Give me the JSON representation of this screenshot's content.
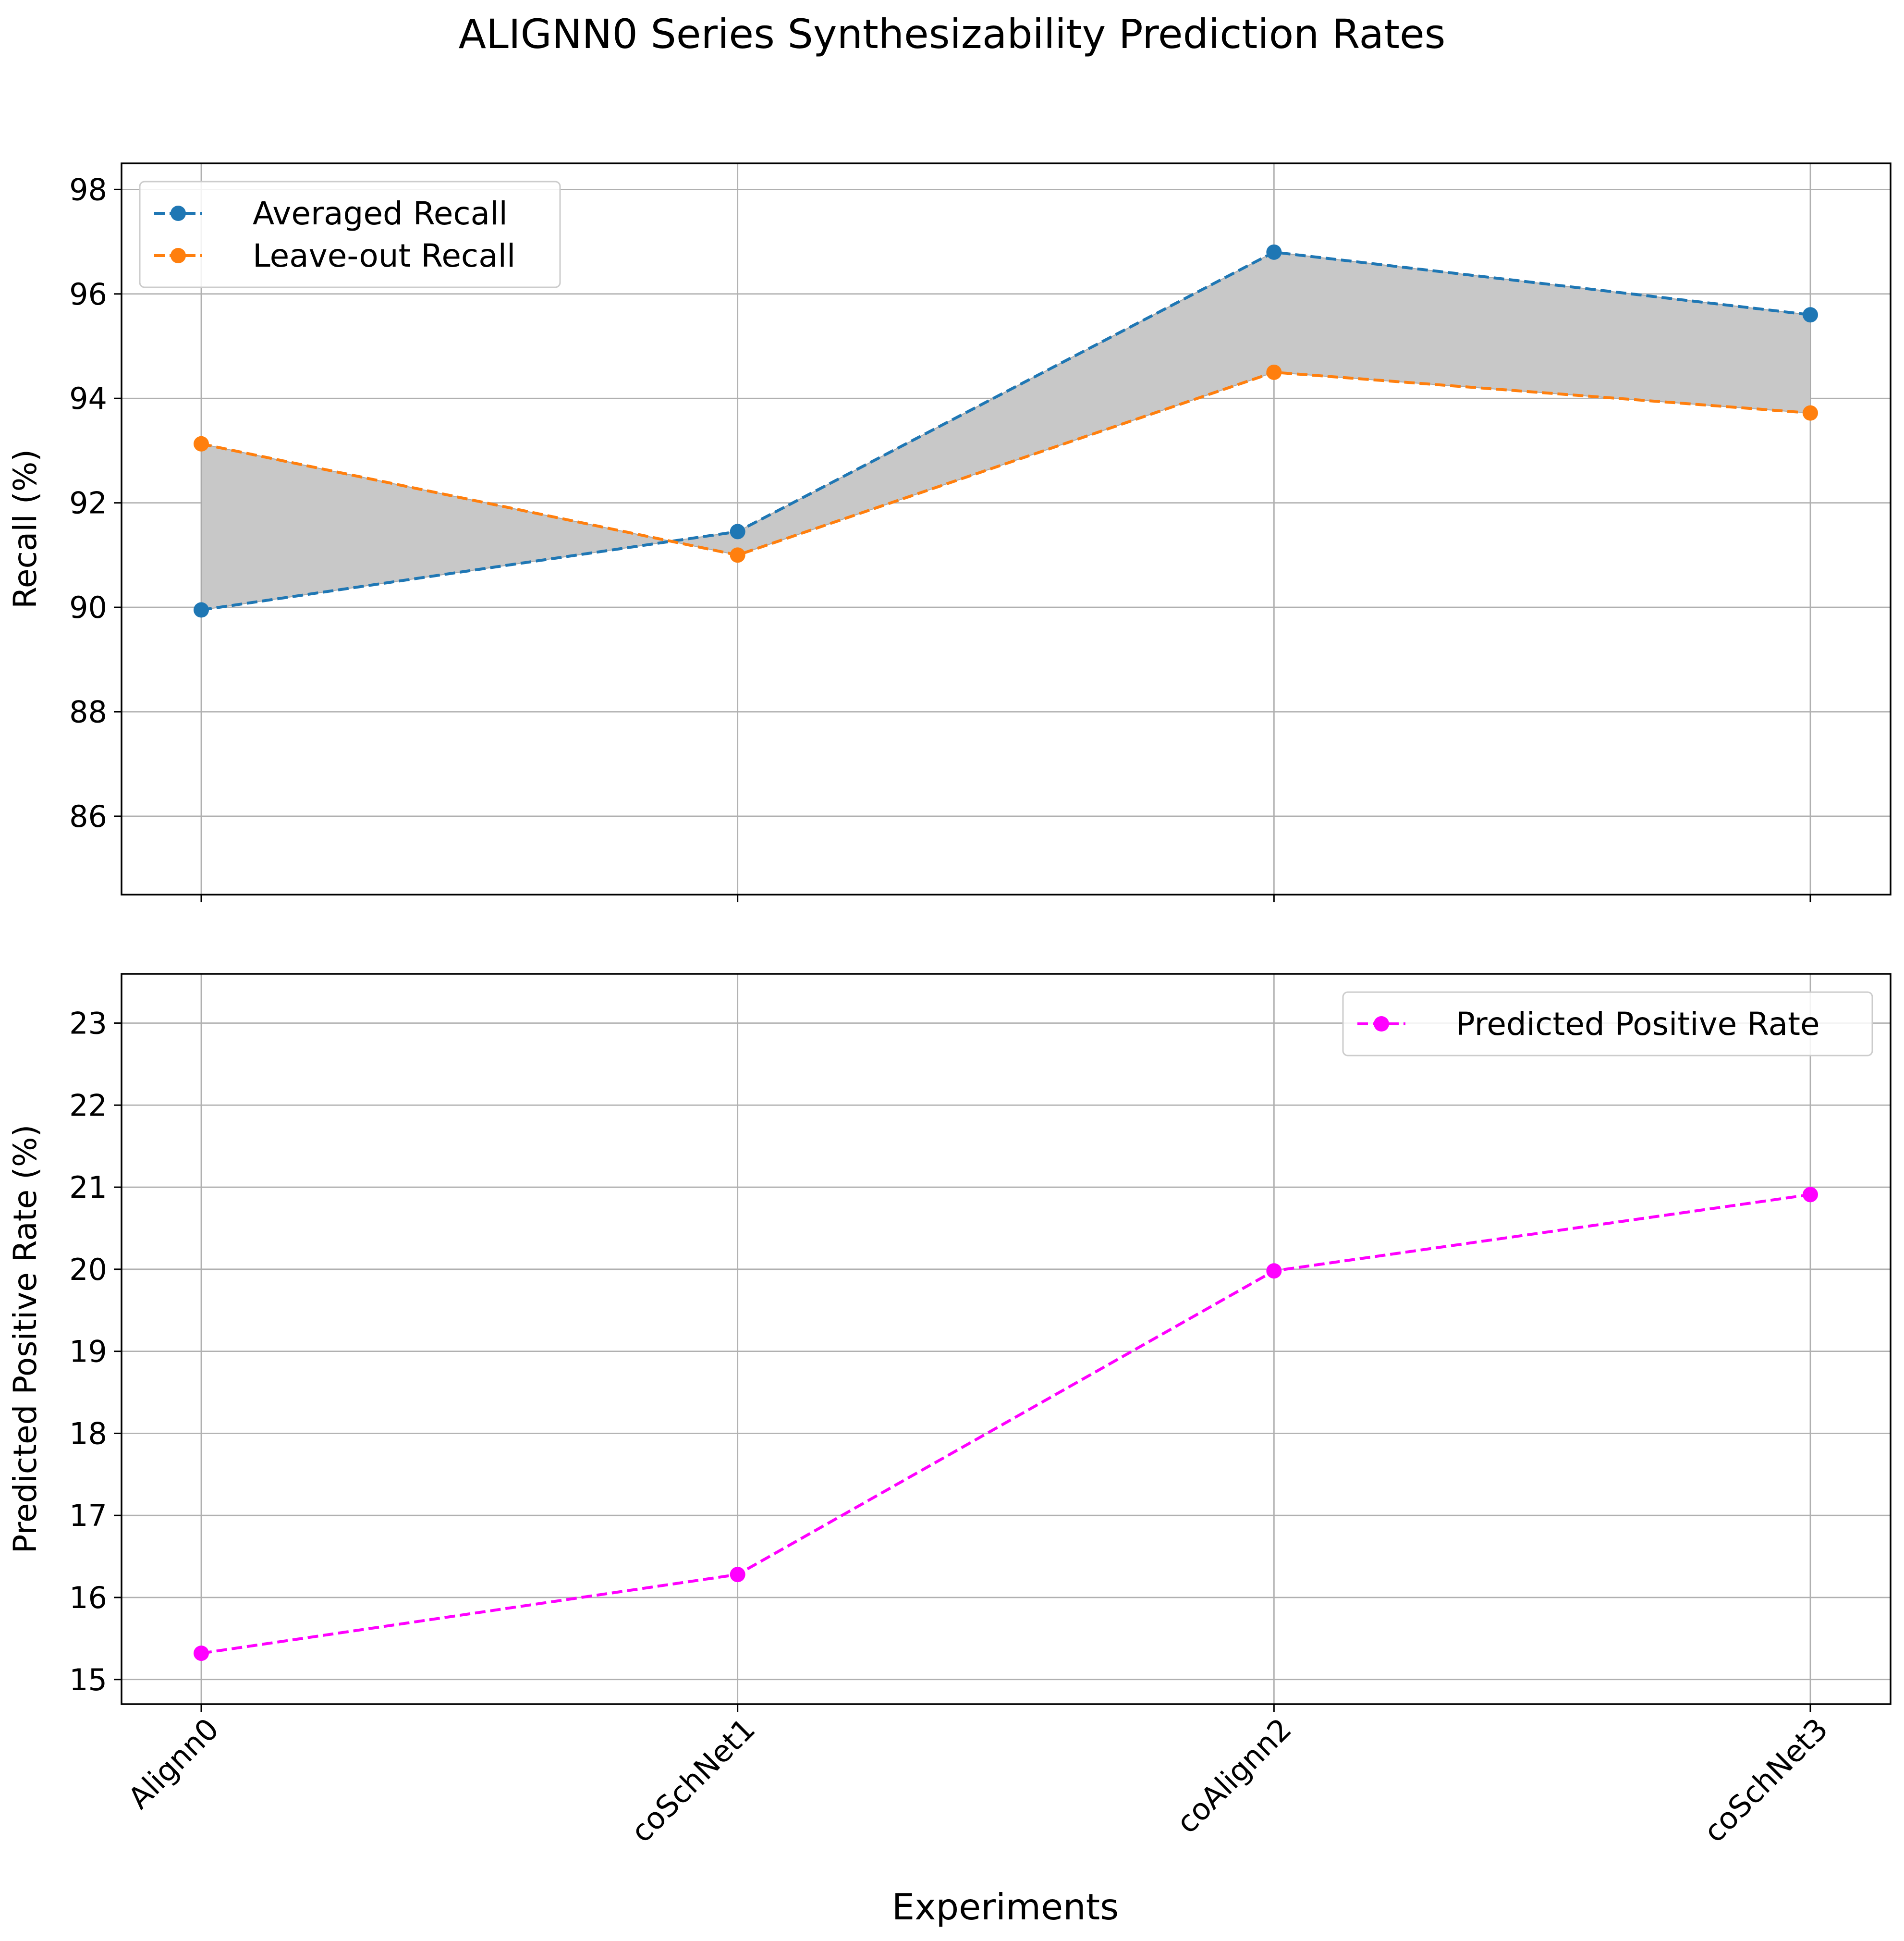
{
  "chart_data": {
    "title": "ALIGNN0 Series Synthesizability Prediction Rates",
    "xlabel": "Experiments",
    "categories": [
      "Alignn0",
      "coSchNet1",
      "coAlignn2",
      "coSchNet3"
    ],
    "subplots": [
      {
        "type": "line",
        "ylabel": "Recall (%)",
        "ylim": [
          84.5,
          98.5
        ],
        "yticks": [
          86,
          88,
          90,
          92,
          94,
          96,
          98
        ],
        "ytick_labels": [
          "86",
          "88",
          "90",
          "92",
          "94",
          "96",
          "98"
        ],
        "grid": true,
        "legend_position": "upper-left",
        "fill_between": {
          "series": [
            "Averaged Recall",
            "Leave-out Recall"
          ],
          "color": "#c8c8c8"
        },
        "series": [
          {
            "name": "Averaged Recall",
            "color": "#1f77b4",
            "linestyle": "dashed",
            "marker": "circle",
            "values": [
              89.95,
              91.45,
              96.8,
              95.6
            ]
          },
          {
            "name": "Leave-out Recall",
            "color": "#ff7f0e",
            "linestyle": "dashed",
            "marker": "circle",
            "values": [
              93.13,
              91.0,
              94.5,
              93.72
            ]
          }
        ]
      },
      {
        "type": "line",
        "ylabel": "Predicted Positive Rate (%)",
        "ylim": [
          14.7,
          23.6
        ],
        "yticks": [
          15,
          16,
          17,
          18,
          19,
          20,
          21,
          22,
          23
        ],
        "ytick_labels": [
          "15",
          "16",
          "17",
          "18",
          "19",
          "20",
          "21",
          "22",
          "23"
        ],
        "grid": true,
        "legend_position": "upper-right",
        "series": [
          {
            "name": "Predicted Positive Rate",
            "color": "#ff00ff",
            "linestyle": "dashed",
            "marker": "circle",
            "values": [
              15.32,
              16.28,
              19.98,
              20.91
            ]
          }
        ]
      }
    ]
  }
}
